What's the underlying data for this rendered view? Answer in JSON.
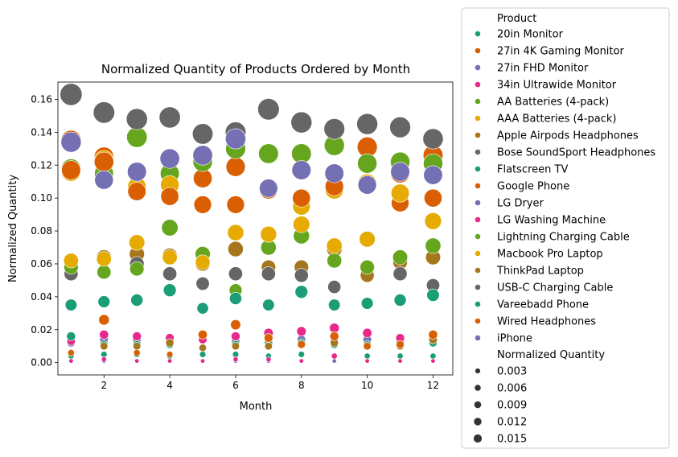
{
  "chart_data": {
    "type": "scatter",
    "title": "Normalized Quantity of Products Ordered by Month",
    "xlabel": "Month",
    "ylabel": "Normalized Quantity",
    "xlim": [
      0.6,
      12.6
    ],
    "ylim": [
      -0.0075,
      0.1705
    ],
    "xticks": [
      2,
      4,
      6,
      8,
      10,
      12
    ],
    "yticks": [
      0.0,
      0.02,
      0.04,
      0.06,
      0.08,
      0.1,
      0.12,
      0.14,
      0.16
    ],
    "ytick_labels": [
      "0.00",
      "0.02",
      "0.04",
      "0.06",
      "0.08",
      "0.10",
      "0.12",
      "0.14",
      "0.16"
    ],
    "grid": false,
    "legend": {
      "placement": "right, outside the plot",
      "hue_title": "Product",
      "size_title": "Normalized Quantity",
      "size_entries": [
        {
          "label": "0.003",
          "value": 0.003
        },
        {
          "label": "0.006",
          "value": 0.006
        },
        {
          "label": "0.009",
          "value": 0.009
        },
        {
          "label": "0.012",
          "value": 0.012
        },
        {
          "label": "0.015",
          "value": 0.015
        }
      ]
    },
    "x": [
      1,
      2,
      3,
      4,
      5,
      6,
      7,
      8,
      9,
      10,
      11,
      12
    ],
    "series": [
      {
        "name": "20in Monitor",
        "color": "#1b9e77",
        "values": [
          0.004,
          0.005,
          0.005,
          0.004,
          0.005,
          0.005,
          0.004,
          0.005,
          0.004,
          0.004,
          0.004,
          0.004
        ]
      },
      {
        "name": "27in 4K Gaming Monitor",
        "color": "#d95f02",
        "values": [
          0.135,
          0.125,
          0.105,
          0.102,
          0.112,
          0.119,
          0.105,
          0.1,
          0.106,
          0.131,
          0.115,
          0.126
        ]
      },
      {
        "name": "27in FHD Monitor",
        "color": "#7570b3",
        "values": [
          0.012,
          0.014,
          0.014,
          0.013,
          0.015,
          0.013,
          0.013,
          0.014,
          0.013,
          0.014,
          0.013,
          0.013
        ]
      },
      {
        "name": "34in Ultrawide Monitor",
        "color": "#e7298a",
        "values": [
          0.013,
          0.017,
          0.016,
          0.015,
          0.014,
          0.016,
          0.018,
          0.019,
          0.021,
          0.018,
          0.015,
          0.016
        ]
      },
      {
        "name": "AA Batteries (4-pack)",
        "color": "#66a61e",
        "values": [
          0.118,
          0.115,
          0.137,
          0.115,
          0.122,
          0.13,
          0.127,
          0.127,
          0.132,
          0.121,
          0.122,
          0.121
        ]
      },
      {
        "name": "AAA Batteries (4-pack)",
        "color": "#e6ab02",
        "values": [
          0.116,
          0.123,
          0.107,
          0.108,
          0.096,
          0.096,
          0.106,
          0.095,
          0.105,
          0.109,
          0.097,
          0.1
        ]
      },
      {
        "name": "Apple Airpods Headphones",
        "color": "#a6761d",
        "values": [
          0.062,
          0.064,
          0.066,
          0.065,
          0.06,
          0.069,
          0.058,
          0.058,
          0.069,
          0.053,
          0.061,
          0.064
        ]
      },
      {
        "name": "Bose SoundSport Headphones",
        "color": "#666666",
        "values": [
          0.054,
          0.055,
          0.06,
          0.054,
          0.048,
          0.054,
          0.054,
          0.053,
          0.046,
          0.058,
          0.054,
          0.047
        ]
      },
      {
        "name": "Flatscreen TV",
        "color": "#1b9e77",
        "values": [
          0.016,
          0.011,
          0.011,
          0.011,
          0.009,
          0.011,
          0.012,
          0.012,
          0.011,
          0.011,
          0.011,
          0.012
        ]
      },
      {
        "name": "Google Phone",
        "color": "#d95f02",
        "values": [
          0.117,
          0.122,
          0.104,
          0.101,
          0.096,
          0.096,
          0.106,
          0.1,
          0.107,
          0.108,
          0.097,
          0.1
        ]
      },
      {
        "name": "LG Dryer",
        "color": "#7570b3",
        "values": [
          0.001,
          0.001,
          0.001,
          0.001,
          0.001,
          0.001,
          0.001,
          0.001,
          0.001,
          0.001,
          0.001,
          0.001
        ]
      },
      {
        "name": "LG Washing Machine",
        "color": "#e7298a",
        "values": [
          0.001,
          0.002,
          0.001,
          0.001,
          0.001,
          0.002,
          0.002,
          0.001,
          0.004,
          0.001,
          0.001,
          0.001
        ]
      },
      {
        "name": "Lightning Charging Cable",
        "color": "#66a61e",
        "values": [
          0.058,
          0.055,
          0.057,
          0.082,
          0.066,
          0.044,
          0.07,
          0.077,
          0.062,
          0.058,
          0.064,
          0.071
        ]
      },
      {
        "name": "Macbook Pro Laptop",
        "color": "#e6ab02",
        "values": [
          0.062,
          0.063,
          0.073,
          0.064,
          0.061,
          0.079,
          0.078,
          0.084,
          0.071,
          0.075,
          0.103,
          0.086
        ]
      },
      {
        "name": "ThinkPad Laptop",
        "color": "#a6761d",
        "values": [
          0.006,
          0.01,
          0.01,
          0.012,
          0.009,
          0.01,
          0.01,
          0.011,
          0.012,
          0.01,
          0.01,
          0.014
        ]
      },
      {
        "name": "USB-C Charging Cable",
        "color": "#666666",
        "values": [
          0.163,
          0.152,
          0.148,
          0.149,
          0.139,
          0.14,
          0.154,
          0.146,
          0.142,
          0.145,
          0.143,
          0.136
        ]
      },
      {
        "name": "Vareebadd Phone",
        "color": "#1b9e77",
        "values": [
          0.035,
          0.037,
          0.038,
          0.044,
          0.033,
          0.039,
          0.035,
          0.043,
          0.035,
          0.036,
          0.038,
          0.041
        ]
      },
      {
        "name": "Wired Headphones",
        "color": "#d95f02",
        "values": [
          0.006,
          0.026,
          0.006,
          0.005,
          0.017,
          0.023,
          0.015,
          0.011,
          0.016,
          0.01,
          0.011,
          0.017
        ]
      },
      {
        "name": "iPhone",
        "color": "#7570b3",
        "values": [
          0.134,
          0.111,
          0.116,
          0.124,
          0.126,
          0.136,
          0.106,
          0.117,
          0.115,
          0.108,
          0.116,
          0.114
        ]
      }
    ]
  }
}
